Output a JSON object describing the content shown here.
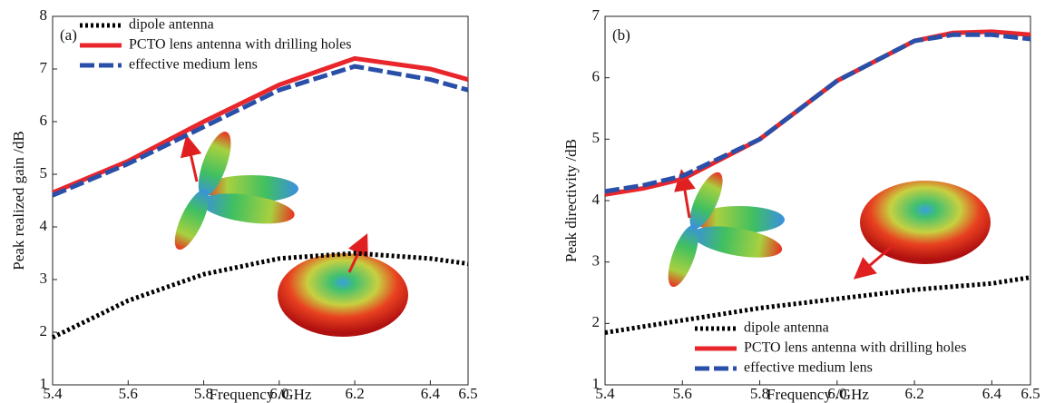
{
  "chart_data": [
    {
      "type": "line",
      "panel_label": "(a)",
      "xlabel": "Frequency /GHz",
      "ylabel": "Peak realized gain /dB",
      "x": [
        5.4,
        5.6,
        5.8,
        6.0,
        6.2,
        6.4,
        6.5
      ],
      "series": [
        {
          "name": "dipole antenna",
          "color": "#000000",
          "dash": "dotted",
          "values": [
            1.9,
            2.6,
            3.1,
            3.4,
            3.5,
            3.4,
            3.3
          ]
        },
        {
          "name": "PCTO lens antenna with drilling holes",
          "color": "#e8262b",
          "dash": "solid",
          "values": [
            4.65,
            5.25,
            6.0,
            6.7,
            7.2,
            7.0,
            6.8
          ]
        },
        {
          "name": "effective medium lens",
          "color": "#2a4fa8",
          "dash": "dashed",
          "values": [
            4.6,
            5.2,
            5.9,
            6.6,
            7.05,
            6.8,
            6.6
          ]
        }
      ],
      "xlim": [
        5.4,
        6.5
      ],
      "ylim": [
        1,
        8
      ],
      "xticks": [
        5.4,
        5.6,
        5.8,
        {
          "value": 6,
          "label": "6.0"
        },
        6.2,
        6.4,
        6.5
      ],
      "yticks": [
        1,
        2,
        3,
        4,
        5,
        6,
        7,
        8
      ],
      "legend": "upper left"
    },
    {
      "type": "line",
      "panel_label": "(b)",
      "xlabel": "Frequency /GHz",
      "ylabel": "Peak directivity /dB",
      "x": [
        5.4,
        5.5,
        5.6,
        5.8,
        6.0,
        6.2,
        6.3,
        6.4,
        6.5
      ],
      "series": [
        {
          "name": "dipole antenna",
          "color": "#000000",
          "dash": "dotted",
          "values": [
            1.85,
            1.95,
            2.05,
            2.25,
            2.4,
            2.55,
            2.6,
            2.65,
            2.75
          ]
        },
        {
          "name": "PCTO lens antenna with drilling holes",
          "color": "#e8262b",
          "dash": "solid",
          "values": [
            4.1,
            4.2,
            4.35,
            5.0,
            5.95,
            6.6,
            6.73,
            6.75,
            6.7
          ]
        },
        {
          "name": "effective medium lens",
          "color": "#2a4fa8",
          "dash": "dashed",
          "values": [
            4.15,
            4.25,
            4.4,
            5.0,
            5.95,
            6.6,
            6.7,
            6.7,
            6.63
          ]
        }
      ],
      "xlim": [
        5.4,
        6.5
      ],
      "ylim": [
        1,
        7
      ],
      "xticks": [
        5.4,
        5.6,
        5.8,
        {
          "value": 6,
          "label": "6.0"
        },
        6.2,
        6.4,
        6.5
      ],
      "yticks": [
        1,
        2,
        3,
        4,
        5,
        6,
        7
      ],
      "legend": "lower right"
    }
  ]
}
